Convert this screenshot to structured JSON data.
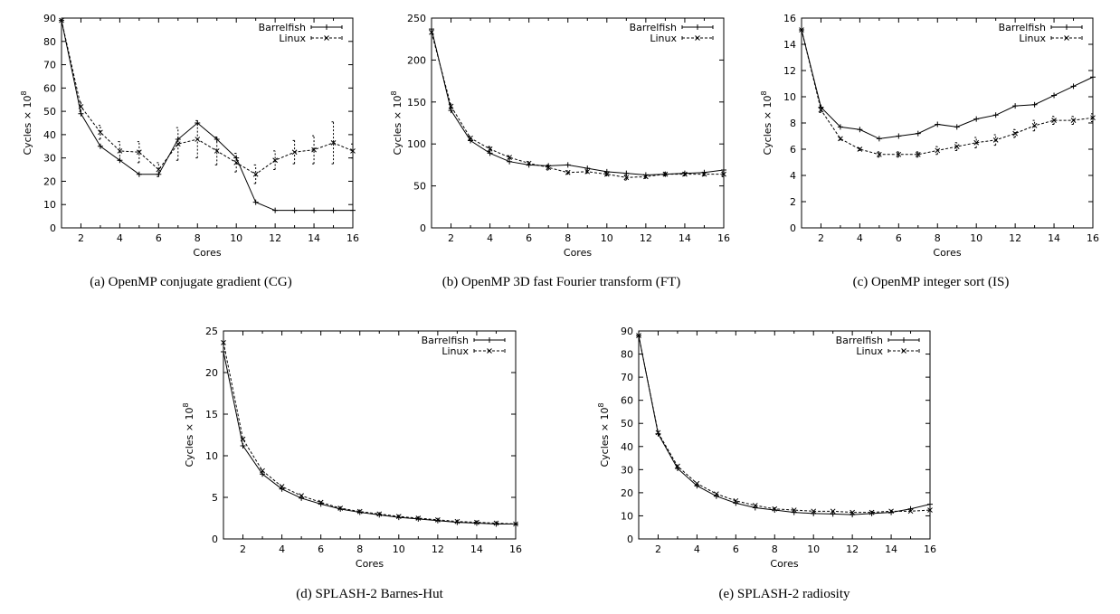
{
  "chart_data": [
    {
      "type": "line",
      "caption": "(a) OpenMP conjugate gradient (CG)",
      "xlabel": "Cores",
      "ylabel": "Cycles × 10",
      "ylabel_exp": "8",
      "xlim": [
        1,
        16
      ],
      "ylim": [
        0,
        90
      ],
      "xticks": [
        2,
        4,
        6,
        8,
        10,
        12,
        14,
        16
      ],
      "yticks": [
        0,
        10,
        20,
        30,
        40,
        50,
        60,
        70,
        80,
        90
      ],
      "legend_position": "top-right",
      "x": [
        1,
        2,
        3,
        4,
        5,
        6,
        7,
        8,
        9,
        10,
        11,
        12,
        13,
        14,
        15,
        16
      ],
      "series": [
        {
          "name": "Barrelfish",
          "style": "solid",
          "values": [
            89,
            49,
            35,
            29,
            23,
            23,
            38,
            45,
            38,
            30,
            11,
            7.5,
            7.5,
            7.5,
            7.5,
            7.5
          ]
        },
        {
          "name": "Linux",
          "style": "dashed",
          "values": [
            89,
            52,
            41,
            33,
            32.5,
            25,
            36,
            38,
            33,
            28,
            23,
            29,
            32.5,
            33.5,
            36.5,
            33
          ],
          "errors": [
            0,
            2,
            3,
            4,
            4.5,
            3,
            7,
            8,
            6,
            4,
            4,
            4,
            5,
            6,
            9,
            3
          ]
        }
      ]
    },
    {
      "type": "line",
      "caption": "(b) OpenMP 3D fast Fourier transform (FT)",
      "xlabel": "Cores",
      "ylabel": "Cycles × 10",
      "ylabel_exp": "8",
      "xlim": [
        1,
        16
      ],
      "ylim": [
        0,
        250
      ],
      "xticks": [
        2,
        4,
        6,
        8,
        10,
        12,
        14,
        16
      ],
      "yticks": [
        0,
        50,
        100,
        150,
        200,
        250
      ],
      "legend_position": "top-right",
      "x": [
        1,
        2,
        3,
        4,
        5,
        6,
        7,
        8,
        9,
        10,
        11,
        12,
        13,
        14,
        15,
        16
      ],
      "series": [
        {
          "name": "Barrelfish",
          "style": "solid",
          "values": [
            237,
            140,
            104,
            89,
            79,
            75,
            74,
            75,
            71,
            67,
            65,
            63,
            64,
            65,
            66,
            69
          ]
        },
        {
          "name": "Linux",
          "style": "dashed",
          "values": [
            233,
            145,
            107,
            94,
            84,
            77,
            72,
            66,
            67,
            64,
            60,
            61,
            64,
            64,
            64,
            64
          ],
          "errors": [
            0,
            3,
            2,
            3,
            2,
            2,
            3,
            2,
            2,
            2,
            3,
            2,
            2,
            2,
            2,
            3
          ]
        }
      ]
    },
    {
      "type": "line",
      "caption": "(c) OpenMP integer sort (IS)",
      "xlabel": "Cores",
      "ylabel": "Cycles × 10",
      "ylabel_exp": "8",
      "xlim": [
        1,
        16
      ],
      "ylim": [
        0,
        16
      ],
      "xticks": [
        2,
        4,
        6,
        8,
        10,
        12,
        14,
        16
      ],
      "yticks": [
        0,
        2,
        4,
        6,
        8,
        10,
        12,
        14,
        16
      ],
      "legend_position": "top-right",
      "x": [
        1,
        2,
        3,
        4,
        5,
        6,
        7,
        8,
        9,
        10,
        11,
        12,
        13,
        14,
        15,
        16
      ],
      "series": [
        {
          "name": "Barrelfish",
          "style": "solid",
          "values": [
            15.1,
            9.2,
            7.7,
            7.5,
            6.8,
            7.0,
            7.2,
            7.9,
            7.7,
            8.3,
            8.6,
            9.3,
            9.4,
            10.1,
            10.8,
            11.5
          ]
        },
        {
          "name": "Linux",
          "style": "dashed",
          "values": [
            15.1,
            9.0,
            6.8,
            6.0,
            5.6,
            5.6,
            5.6,
            5.9,
            6.2,
            6.5,
            6.7,
            7.2,
            7.8,
            8.2,
            8.2,
            8.4
          ],
          "errors": [
            0,
            0.2,
            0.1,
            0.1,
            0.2,
            0.2,
            0.2,
            0.3,
            0.3,
            0.4,
            0.4,
            0.3,
            0.4,
            0.3,
            0.3,
            0.3
          ]
        }
      ]
    },
    {
      "type": "line",
      "caption": "(d) SPLASH-2 Barnes-Hut",
      "xlabel": "Cores",
      "ylabel": "Cycles × 10",
      "ylabel_exp": "8",
      "xlim": [
        1,
        16
      ],
      "ylim": [
        0,
        25
      ],
      "xticks": [
        2,
        4,
        6,
        8,
        10,
        12,
        14,
        16
      ],
      "yticks": [
        0,
        5,
        10,
        15,
        20,
        25
      ],
      "legend_position": "top-right",
      "x": [
        1,
        2,
        3,
        4,
        5,
        6,
        7,
        8,
        9,
        10,
        11,
        12,
        13,
        14,
        15,
        16
      ],
      "series": [
        {
          "name": "Barrelfish",
          "style": "solid",
          "values": [
            22.5,
            11.2,
            7.8,
            6.0,
            4.9,
            4.2,
            3.6,
            3.2,
            2.9,
            2.6,
            2.4,
            2.2,
            2.0,
            1.9,
            1.8,
            1.8
          ]
        },
        {
          "name": "Linux",
          "style": "dashed",
          "values": [
            23.6,
            12.0,
            8.2,
            6.3,
            5.2,
            4.4,
            3.7,
            3.3,
            3.0,
            2.7,
            2.5,
            2.3,
            2.1,
            2.0,
            1.9,
            1.8
          ]
        }
      ]
    },
    {
      "type": "line",
      "caption": "(e) SPLASH-2 radiosity",
      "xlabel": "Cores",
      "ylabel": "Cycles × 10",
      "ylabel_exp": "8",
      "xlim": [
        1,
        16
      ],
      "ylim": [
        0,
        90
      ],
      "xticks": [
        2,
        4,
        6,
        8,
        10,
        12,
        14,
        16
      ],
      "yticks": [
        0,
        10,
        20,
        30,
        40,
        50,
        60,
        70,
        80,
        90
      ],
      "legend_position": "top-right",
      "x": [
        1,
        2,
        3,
        4,
        5,
        6,
        7,
        8,
        9,
        10,
        11,
        12,
        13,
        14,
        15,
        16
      ],
      "series": [
        {
          "name": "Barrelfish",
          "style": "solid",
          "values": [
            88,
            45.5,
            30.5,
            23,
            18.5,
            15.5,
            13.5,
            12.5,
            11.5,
            11,
            10.8,
            10.5,
            11,
            11.5,
            13,
            15
          ]
        },
        {
          "name": "Linux",
          "style": "dashed",
          "values": [
            88,
            46,
            31.5,
            24,
            19.5,
            16.5,
            14.5,
            13,
            12.5,
            12,
            12,
            11.5,
            11.5,
            12,
            12,
            12.5
          ]
        }
      ]
    }
  ]
}
